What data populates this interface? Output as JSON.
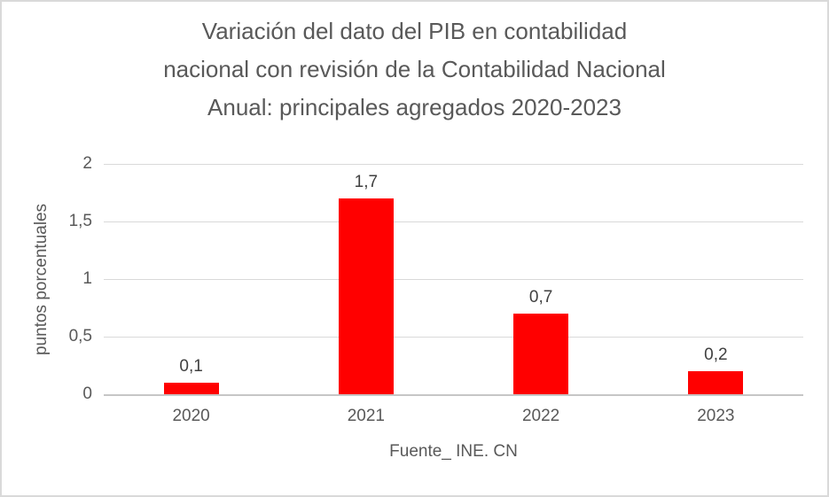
{
  "chart_data": {
    "type": "bar",
    "title": "Variación del dato del PIB en contabilidad nacional con revisión de la Contabilidad Nacional Anual: principales agregados 2020-2023",
    "title_lines": [
      "Variación del dato del PIB en contabilidad",
      "nacional con revisión de la Contabilidad Nacional",
      "Anual: principales agregados 2020-2023"
    ],
    "categories": [
      "2020",
      "2021",
      "2022",
      "2023"
    ],
    "values": [
      0.1,
      1.7,
      0.7,
      0.2
    ],
    "value_labels": [
      "0,1",
      "1,7",
      "0,7",
      "0,2"
    ],
    "ylabel": "puntos porcentuales",
    "xlabel": "Fuente_ INE. CN",
    "ylim": [
      0,
      2
    ],
    "yticks": [
      2,
      1.5,
      1,
      0.5,
      0
    ],
    "ytick_labels": [
      "2",
      "1,5",
      "1",
      "0,5",
      "0"
    ],
    "grid": true,
    "legend": false,
    "bar_color": "#FF0000",
    "gridline_color": "#D9D9D9",
    "text_color": "#595959",
    "value_label_color": "#404040"
  }
}
